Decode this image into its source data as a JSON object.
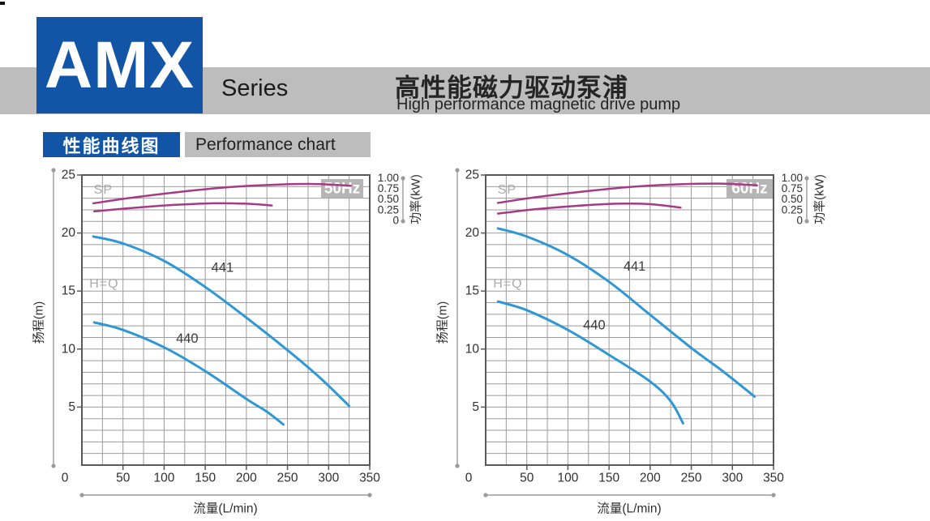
{
  "page": {
    "brand": "AMX",
    "series_label": "Series",
    "title_zh": "高性能磁力驱动泵浦",
    "title_en": "High performance magnetic drive pump",
    "section_zh": "性能曲线图",
    "section_en": "Performance chart"
  },
  "colors": {
    "brand_blue": "#1254a6",
    "band_gray": "#bdbdbd",
    "curve_blue": "#2e98d4",
    "curve_magenta": "#a63a85",
    "grid_gray": "#9b9b9b",
    "frame_gray": "#58595b",
    "badge_gray": "#b5b5b5",
    "tick_text": "#2f2f2f",
    "faint_text": "#ababab",
    "curve_label_text": "#3b3b3b"
  },
  "chart_data": [
    {
      "type": "line",
      "badge": "50Hz",
      "xlabel": "流量(L/min)",
      "ylabel_left": "扬程(m)",
      "ylabel_right": "功率(kW)",
      "xlim": [
        0,
        350
      ],
      "ylim_head_m": [
        0,
        25
      ],
      "ylim_power_kw": [
        0,
        1.0
      ],
      "x_ticks": [
        0,
        50,
        100,
        150,
        200,
        250,
        300,
        350
      ],
      "y_ticks": [
        5,
        10,
        15,
        20,
        25
      ],
      "power_ticks": [
        "1.00",
        "0.75",
        "0.50",
        "0.25",
        "0"
      ],
      "grid": "on, minor 25 L/min x 1 m",
      "legend_position": "inline labels",
      "annotations": [
        {
          "text": "SP",
          "x": 26,
          "y": 23.7
        },
        {
          "text": "H=Q",
          "x": 27,
          "y": 15.6
        }
      ],
      "series": [
        {
          "name": "441",
          "axis": "head",
          "label_at": [
            171,
            17.0
          ],
          "points": [
            [
              14,
              19.7
            ],
            [
              50,
              19.1
            ],
            [
              100,
              17.6
            ],
            [
              150,
              15.35
            ],
            [
              200,
              12.7
            ],
            [
              250,
              9.9
            ],
            [
              290,
              7.5
            ],
            [
              325,
              5.1
            ]
          ]
        },
        {
          "name": "440",
          "axis": "head",
          "label_at": [
            128,
            10.9
          ],
          "points": [
            [
              15,
              12.3
            ],
            [
              50,
              11.65
            ],
            [
              100,
              10.15
            ],
            [
              150,
              8.1
            ],
            [
              200,
              5.7
            ],
            [
              225,
              4.6
            ],
            [
              245,
              3.5
            ]
          ]
        },
        {
          "name": "SP 441",
          "axis": "power",
          "points": [
            [
              14,
              0.4
            ],
            [
              60,
              0.53
            ],
            [
              120,
              0.67
            ],
            [
              180,
              0.78
            ],
            [
              240,
              0.84
            ],
            [
              290,
              0.85
            ],
            [
              327,
              0.81
            ]
          ]
        },
        {
          "name": "SP 440",
          "axis": "power",
          "points": [
            [
              15,
              0.21
            ],
            [
              60,
              0.29
            ],
            [
              110,
              0.36
            ],
            [
              160,
              0.4
            ],
            [
              200,
              0.39
            ],
            [
              231,
              0.35
            ]
          ]
        }
      ]
    },
    {
      "type": "line",
      "badge": "60Hz",
      "xlabel": "流量(L/min)",
      "ylabel_left": "扬程(m)",
      "ylabel_right": "功率(kW)",
      "xlim": [
        0,
        350
      ],
      "ylim_head_m": [
        0,
        25
      ],
      "ylim_power_kw": [
        0,
        1.0
      ],
      "x_ticks": [
        0,
        50,
        100,
        150,
        200,
        250,
        300,
        350
      ],
      "y_ticks": [
        5,
        10,
        15,
        20,
        25
      ],
      "power_ticks": [
        "1.00",
        "0.75",
        "0.50",
        "0.25",
        "0"
      ],
      "grid": "on, minor 25 L/min x 1 m",
      "legend_position": "inline labels",
      "annotations": [
        {
          "text": "SP",
          "x": 26,
          "y": 23.7
        },
        {
          "text": "H=Q",
          "x": 27,
          "y": 15.6
        }
      ],
      "series": [
        {
          "name": "441",
          "axis": "head",
          "label_at": [
            181,
            17.1
          ],
          "points": [
            [
              15,
              20.4
            ],
            [
              50,
              19.7
            ],
            [
              100,
              18.1
            ],
            [
              150,
              15.8
            ],
            [
              200,
              12.95
            ],
            [
              250,
              10.1
            ],
            [
              290,
              8.0
            ],
            [
              327,
              5.9
            ]
          ]
        },
        {
          "name": "440",
          "axis": "head",
          "label_at": [
            132,
            12.05
          ],
          "points": [
            [
              15,
              14.1
            ],
            [
              50,
              13.35
            ],
            [
              100,
              11.65
            ],
            [
              150,
              9.5
            ],
            [
              200,
              7.2
            ],
            [
              225,
              5.5
            ],
            [
              240,
              3.6
            ]
          ]
        },
        {
          "name": "SP 441",
          "axis": "power",
          "points": [
            [
              15,
              0.41
            ],
            [
              60,
              0.54
            ],
            [
              120,
              0.68
            ],
            [
              180,
              0.79
            ],
            [
              240,
              0.85
            ],
            [
              290,
              0.86
            ],
            [
              330,
              0.82
            ]
          ]
        },
        {
          "name": "SP 440",
          "axis": "power",
          "points": [
            [
              15,
              0.16
            ],
            [
              60,
              0.26
            ],
            [
              110,
              0.34
            ],
            [
              160,
              0.39
            ],
            [
              200,
              0.38
            ],
            [
              237,
              0.3
            ]
          ]
        }
      ]
    }
  ]
}
